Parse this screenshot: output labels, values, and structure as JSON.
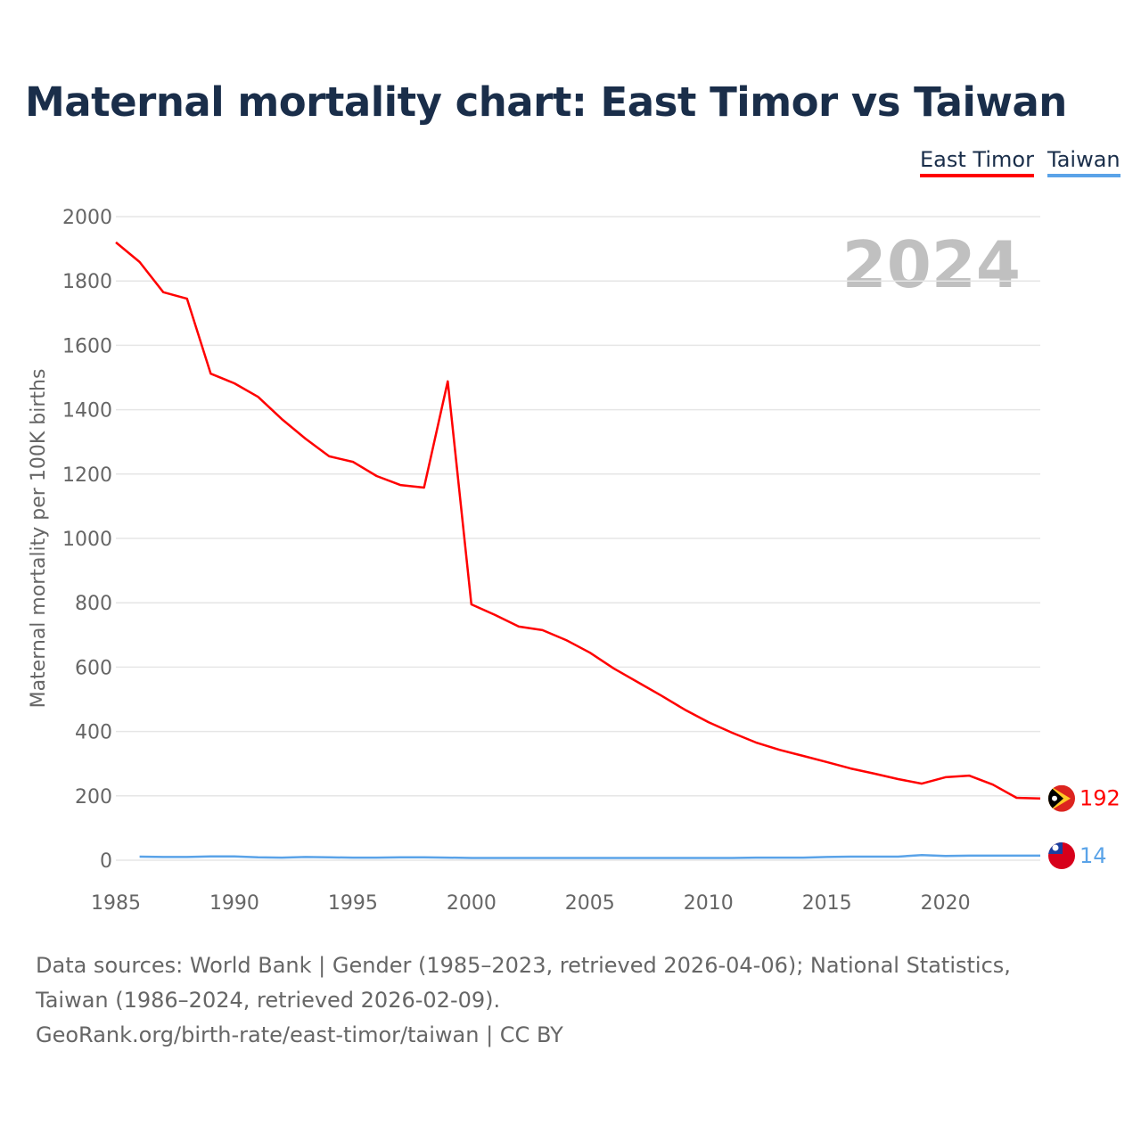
{
  "chart_data": {
    "type": "line",
    "title": "Maternal mortality chart: East Timor vs Taiwan",
    "xlabel": "",
    "ylabel": "Maternal mortality per 100K births",
    "xlim": [
      1985,
      2024
    ],
    "ylim": [
      0,
      2000
    ],
    "grid": true,
    "legend_position": "top-right",
    "xticks": [
      1985,
      1990,
      1995,
      2000,
      2005,
      2010,
      2015,
      2020
    ],
    "yticks": [
      0,
      200,
      400,
      600,
      800,
      1000,
      1200,
      1400,
      1600,
      1800,
      2000
    ],
    "year_watermark": "2024",
    "series": [
      {
        "name": "East Timor",
        "color": "#ff0000",
        "end_label": "192",
        "x": [
          1985,
          1986,
          1987,
          1988,
          1989,
          1990,
          1991,
          1992,
          1993,
          1994,
          1995,
          1996,
          1997,
          1998,
          1999,
          2000,
          2001,
          2002,
          2003,
          2004,
          2005,
          2006,
          2007,
          2008,
          2009,
          2010,
          2011,
          2012,
          2013,
          2014,
          2015,
          2016,
          2017,
          2018,
          2019,
          2020,
          2021,
          2022,
          2023,
          2024
        ],
        "values": [
          1920,
          1859,
          1765,
          1745,
          1512,
          1482,
          1440,
          1371,
          1310,
          1255,
          1238,
          1194,
          1166,
          1158,
          1488,
          795,
          762,
          726,
          715,
          684,
          645,
          596,
          554,
          512,
          468,
          429,
          396,
          366,
          343,
          324,
          305,
          285,
          269,
          252,
          238,
          258,
          263,
          235,
          194,
          192
        ]
      },
      {
        "name": "Taiwan",
        "color": "#5aa3e8",
        "end_label": "14",
        "x": [
          1986,
          1987,
          1988,
          1989,
          1990,
          1991,
          1992,
          1993,
          1994,
          1995,
          1996,
          1997,
          1998,
          1999,
          2000,
          2001,
          2002,
          2003,
          2004,
          2005,
          2006,
          2007,
          2008,
          2009,
          2010,
          2011,
          2012,
          2013,
          2014,
          2015,
          2016,
          2017,
          2018,
          2019,
          2020,
          2021,
          2022,
          2023,
          2024
        ],
        "values": [
          11,
          10,
          10,
          12,
          12,
          9,
          8,
          10,
          9,
          8,
          8,
          9,
          9,
          8,
          7,
          7,
          7,
          7,
          7,
          7,
          7,
          7,
          7,
          7,
          7,
          7,
          8,
          8,
          8,
          10,
          11,
          11,
          11,
          16,
          13,
          14,
          14,
          14,
          14
        ]
      }
    ]
  },
  "footer": {
    "sources": "Data sources: World Bank | Gender (1985–2023, retrieved 2026-04-06); National Statistics, Taiwan (1986–2024, retrieved 2026-02-09).",
    "credit": "GeoRank.org/birth-rate/east-timor/taiwan | CC BY"
  }
}
